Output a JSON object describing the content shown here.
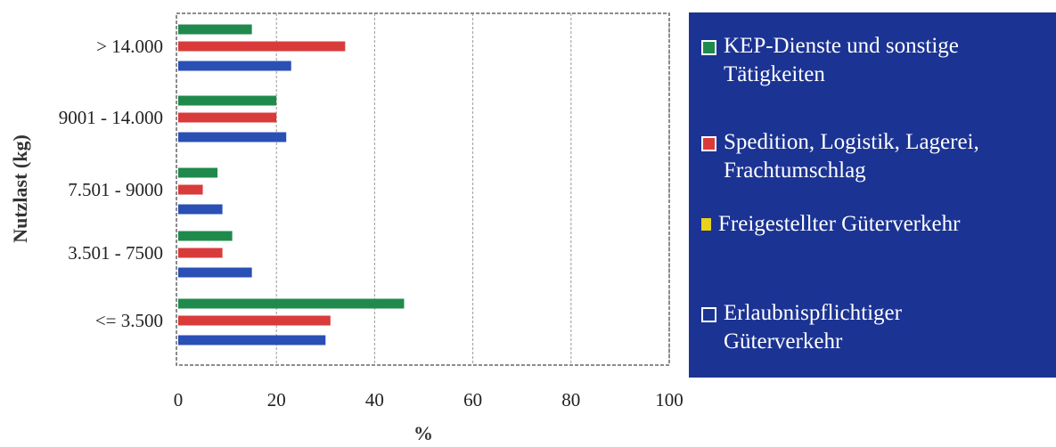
{
  "chart_data": {
    "type": "bar",
    "orientation": "horizontal",
    "title": "",
    "xlabel": "%",
    "ylabel": "Nutzlast (kg)",
    "xlim": [
      0,
      100
    ],
    "x_ticks": [
      "0",
      "20",
      "40",
      "60",
      "80",
      "100"
    ],
    "grid": true,
    "legend_position": "right",
    "categories": [
      "> 14.000",
      "9001 - 14.000",
      "7.501 - 9000",
      "3.501 - 7500",
      "<= 3.500"
    ],
    "series": [
      {
        "name": "KEP-Dienste und sonstige Tätigkeiten",
        "color": "#1f8a4c",
        "values": [
          15,
          20,
          8,
          11,
          46
        ]
      },
      {
        "name": "Spedition, Logistik, Lagerei, Frachtumschlag",
        "color": "#d93b3b",
        "values": [
          34,
          20,
          5,
          9,
          31
        ]
      },
      {
        "name": "Freigestellter Güterverkehr",
        "color": "#e8d21c",
        "values": [
          0,
          0,
          0,
          0,
          0
        ]
      },
      {
        "name": "Erlaubnispflichtiger Güterverkehr",
        "color": "#2a4fb5",
        "values": [
          23,
          22,
          9,
          15,
          30
        ]
      }
    ]
  },
  "legend": [
    {
      "label": "KEP-Dienste und sonstige\nTätigkeiten",
      "color": "#1f8a4c"
    },
    {
      "label": "Spedition, Logistik, Lagerei,\nFrachtumschlag",
      "color": "#d93b3b"
    },
    {
      "label": "Freigestellter Güterverkehr",
      "color": "#e8d21c"
    },
    {
      "label": "Erlaubnispflichtiger\nGüterverkehr",
      "color": "#1b3393"
    }
  ]
}
